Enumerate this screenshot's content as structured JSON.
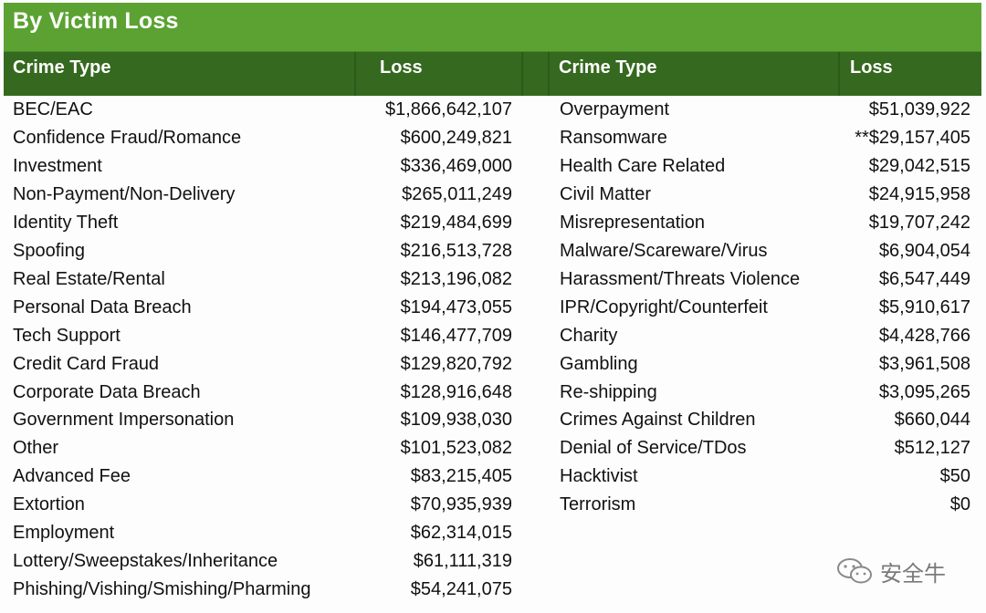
{
  "title": "By Victim Loss",
  "headers": {
    "left_crime_type": "Crime Type",
    "left_loss": "Loss",
    "right_crime_type": "Crime Type",
    "right_loss": "Loss"
  },
  "left_rows": [
    {
      "crime": "BEC/EAC",
      "loss": "$1,866,642,107"
    },
    {
      "crime": "Confidence Fraud/Romance",
      "loss": "$600,249,821"
    },
    {
      "crime": "Investment",
      "loss": "$336,469,000"
    },
    {
      "crime": "Non-Payment/Non-Delivery",
      "loss": "$265,011,249"
    },
    {
      "crime": "Identity Theft",
      "loss": "$219,484,699"
    },
    {
      "crime": "Spoofing",
      "loss": "$216,513,728"
    },
    {
      "crime": "Real Estate/Rental",
      "loss": "$213,196,082"
    },
    {
      "crime": "Personal Data Breach",
      "loss": "$194,473,055"
    },
    {
      "crime": "Tech Support",
      "loss": "$146,477,709"
    },
    {
      "crime": "Credit Card Fraud",
      "loss": "$129,820,792"
    },
    {
      "crime": "Corporate Data Breach",
      "loss": "$128,916,648"
    },
    {
      "crime": "Government Impersonation",
      "loss": "$109,938,030"
    },
    {
      "crime": "Other",
      "loss": "$101,523,082"
    },
    {
      "crime": "Advanced Fee",
      "loss": "$83,215,405"
    },
    {
      "crime": "Extortion",
      "loss": "$70,935,939"
    },
    {
      "crime": "Employment",
      "loss": "$62,314,015"
    },
    {
      "crime": "Lottery/Sweepstakes/Inheritance",
      "loss": "$61,111,319"
    },
    {
      "crime": "Phishing/Vishing/Smishing/Pharming",
      "loss": "$54,241,075"
    }
  ],
  "right_rows": [
    {
      "crime": "Overpayment",
      "loss": "$51,039,922"
    },
    {
      "crime": "Ransomware",
      "loss": "**$29,157,405"
    },
    {
      "crime": "Health Care Related",
      "loss": "$29,042,515"
    },
    {
      "crime": "Civil Matter",
      "loss": "$24,915,958"
    },
    {
      "crime": "Misrepresentation",
      "loss": "$19,707,242"
    },
    {
      "crime": "Malware/Scareware/Virus",
      "loss": "$6,904,054"
    },
    {
      "crime": "Harassment/Threats Violence",
      "loss": "$6,547,449"
    },
    {
      "crime": "IPR/Copyright/Counterfeit",
      "loss": "$5,910,617"
    },
    {
      "crime": "Charity",
      "loss": "$4,428,766"
    },
    {
      "crime": "Gambling",
      "loss": "$3,961,508"
    },
    {
      "crime": "Re-shipping",
      "loss": "$3,095,265"
    },
    {
      "crime": "Crimes Against Children",
      "loss": "$660,044"
    },
    {
      "crime": "Denial of Service/TDos",
      "loss": "$512,127"
    },
    {
      "crime": "Hacktivist",
      "loss": "$50"
    },
    {
      "crime": "Terrorism",
      "loss": "$0"
    }
  ],
  "watermark": {
    "icon": "wechat-icon",
    "text": "安全牛"
  },
  "colors": {
    "title_bar": "#5ba232",
    "header_bar": "#35691f"
  }
}
